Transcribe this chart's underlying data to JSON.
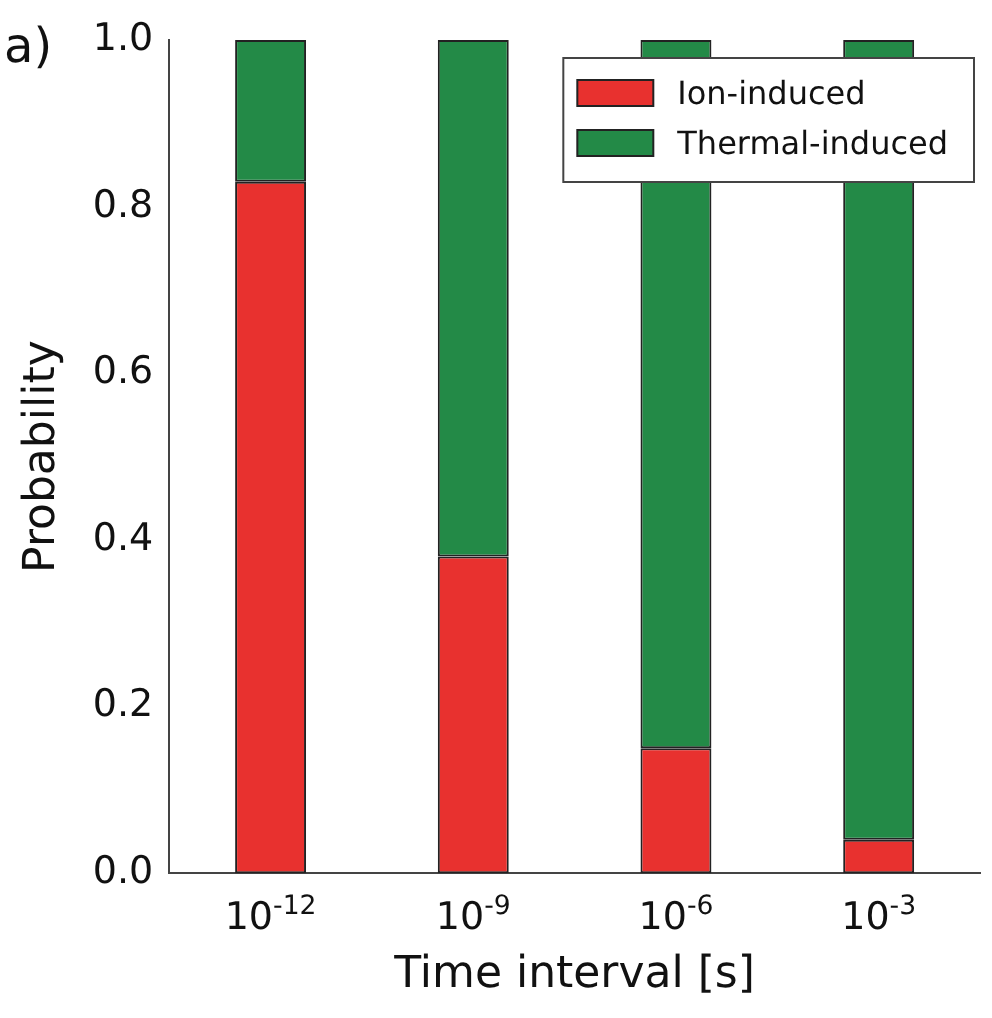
{
  "chart_data": {
    "type": "bar",
    "stacked": true,
    "xlabel": "Time interval [s]",
    "ylabel": "Probability",
    "categories": [
      "10$^{-12}$",
      "10$^{-9}$",
      "10$^{-6}$",
      "10$^{-3}$"
    ],
    "series": [
      {
        "name": "Ion-induced",
        "color": "#e8312f",
        "values": [
          0.83,
          0.38,
          0.15,
          0.04
        ]
      },
      {
        "name": "Thermal-induced",
        "color": "#238a47",
        "values": [
          0.17,
          0.62,
          0.85,
          0.96
        ]
      }
    ],
    "ylim": [
      0,
      1
    ],
    "yticks": [
      {
        "value": 0,
        "label": "0.0"
      },
      {
        "value": 0.2,
        "label": "0.2"
      },
      {
        "value": 0.4,
        "label": "0.4"
      },
      {
        "value": 0.6,
        "label": "0.6"
      },
      {
        "value": 0.8,
        "label": "0.8"
      },
      {
        "value": 1,
        "label": "1.0"
      }
    ],
    "grid": false,
    "legend": "top right",
    "annotations": [
      "a)"
    ]
  }
}
